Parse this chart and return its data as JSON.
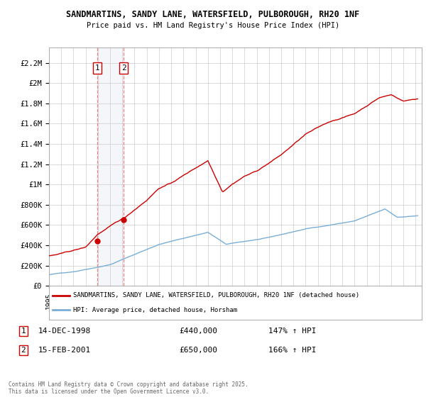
{
  "title_line1": "SANDMARTINS, SANDY LANE, WATERSFIELD, PULBOROUGH, RH20 1NF",
  "title_line2": "Price paid vs. HM Land Registry's House Price Index (HPI)",
  "ylabel_ticks": [
    "£0",
    "£200K",
    "£400K",
    "£600K",
    "£800K",
    "£1M",
    "£1.2M",
    "£1.4M",
    "£1.6M",
    "£1.8M",
    "£2M",
    "£2.2M"
  ],
  "ytick_values": [
    0,
    200000,
    400000,
    600000,
    800000,
    1000000,
    1200000,
    1400000,
    1600000,
    1800000,
    2000000,
    2200000
  ],
  "ylim": [
    0,
    2350000
  ],
  "xlim_start": 1995.0,
  "xlim_end": 2025.5,
  "legend_line1": "SANDMARTINS, SANDY LANE, WATERSFIELD, PULBOROUGH, RH20 1NF (detached house)",
  "legend_line2": "HPI: Average price, detached house, Horsham",
  "red_color": "#cc0000",
  "blue_color": "#7aaed6",
  "marker1_x": 1998.96,
  "marker1_y": 440000,
  "marker1_label": "1",
  "marker1_date": "14-DEC-1998",
  "marker1_price": "£440,000",
  "marker1_hpi": "147% ↑ HPI",
  "marker2_x": 2001.12,
  "marker2_y": 650000,
  "marker2_label": "2",
  "marker2_date": "15-FEB-2001",
  "marker2_price": "£650,000",
  "marker2_hpi": "166% ↑ HPI",
  "footnote": "Contains HM Land Registry data © Crown copyright and database right 2025.\nThis data is licensed under the Open Government Licence v3.0.",
  "background_color": "#ffffff",
  "grid_color": "#cccccc"
}
